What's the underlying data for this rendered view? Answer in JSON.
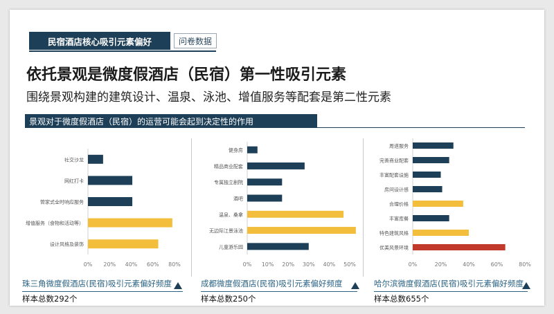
{
  "header": {
    "tag": "民宿酒店核心吸引元素偏好",
    "tag2": "问卷数据",
    "headline": "依托景观是微度假酒店（民宿）第一性吸引元素",
    "subhead": "围绕景观构建的建筑设计、温泉、泳池、增值服务等配套是第二性元素",
    "section": "景观对于微度假酒店（民宿）的运营可能会起到决定性的作用"
  },
  "colors": {
    "navy": "#1d3f57",
    "gold": "#f2be3b",
    "red": "#c0392b",
    "link": "#2b6384"
  },
  "chart_data": [
    {
      "type": "bar",
      "orientation": "horizontal",
      "title": "珠三角微度假酒店(民宿)吸引元素偏好频度",
      "sample": "样本总数292个",
      "categories": [
        "社交沙龙",
        "网红打卡",
        "管家式全时响应服务",
        "增值服务（食物和活动等）",
        "设计风格及装饰"
      ],
      "values": [
        0.14,
        0.41,
        0.41,
        0.78,
        0.65
      ],
      "bar_colors": [
        "navy",
        "navy",
        "navy",
        "gold",
        "gold"
      ],
      "xlim": [
        0,
        80
      ],
      "ticks": [
        "0%",
        "20%",
        "40%",
        "60%",
        "80%"
      ]
    },
    {
      "type": "bar",
      "orientation": "horizontal",
      "title": "成都微度假酒店(民宿)吸引元素偏好频度",
      "sample": "样本总数250个",
      "categories": [
        "健身房",
        "精品商业配套",
        "专属独立剧院",
        "酒吧",
        "温泉、桑拿",
        "无边际江景泳池",
        "儿童游乐园"
      ],
      "values": [
        0.05,
        0.28,
        0.17,
        0.17,
        0.47,
        0.53,
        0.3
      ],
      "bar_colors": [
        "navy",
        "navy",
        "navy",
        "navy",
        "gold",
        "gold",
        "navy"
      ],
      "xlim": [
        0,
        50
      ],
      "ticks": [
        "0%",
        "10%",
        "20%",
        "30%",
        "40%",
        "50%"
      ]
    },
    {
      "type": "bar",
      "orientation": "horizontal",
      "title": "哈尔滨微度假酒店(民宿)吸引元素偏好频度",
      "sample": "样本总数655个",
      "categories": [
        "周道服务",
        "完善商业配套",
        "丰富配套设施",
        "房间设计感",
        "合理价格",
        "丰富库餐",
        "特色建筑风格",
        "优美风景环境"
      ],
      "values": [
        0.29,
        0.26,
        0.2,
        0.21,
        0.36,
        0.26,
        0.4,
        0.66
      ],
      "bar_colors": [
        "navy",
        "navy",
        "navy",
        "navy",
        "gold",
        "navy",
        "gold",
        "red"
      ],
      "xlim": [
        0,
        80
      ],
      "ticks": [
        "0%",
        "20%",
        "40%",
        "60%",
        "80%"
      ]
    }
  ]
}
